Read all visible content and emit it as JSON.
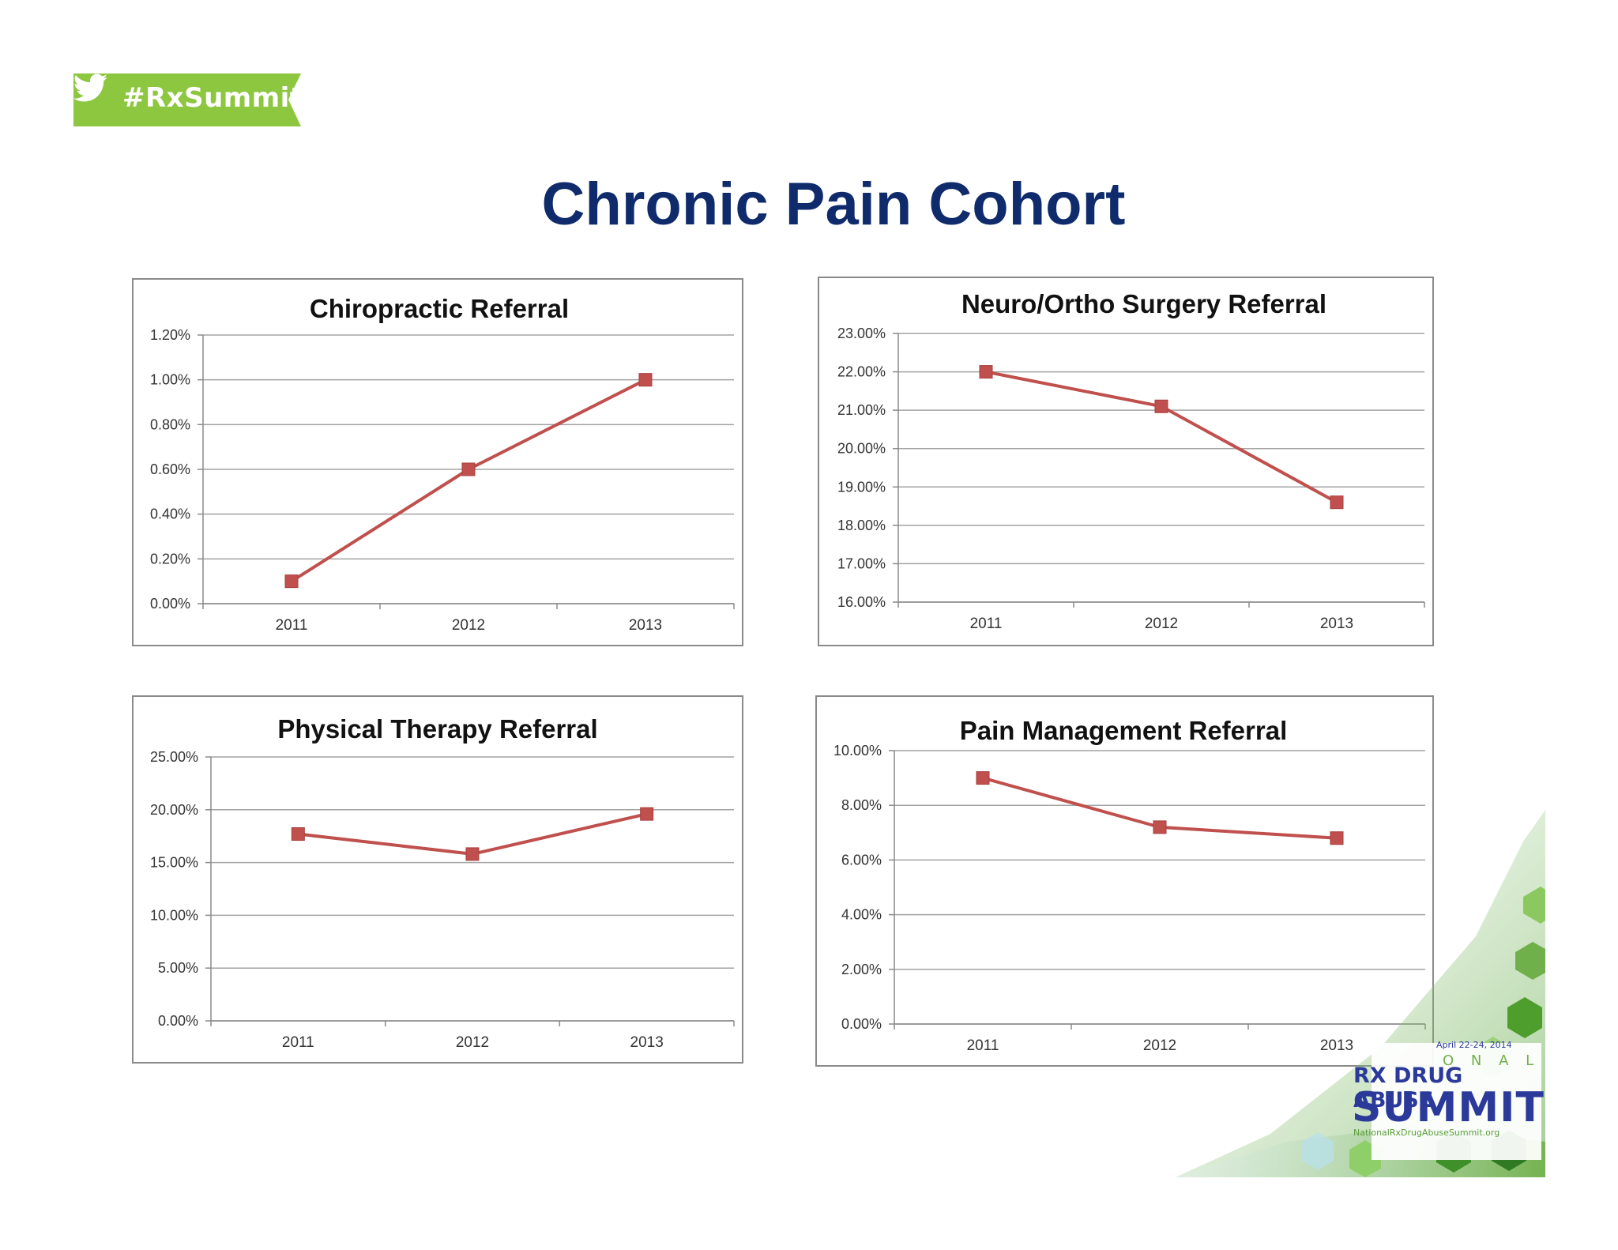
{
  "badge": {
    "text": "#RxSummit",
    "color": "#8dc63f"
  },
  "title": "Chronic Pain Cohort",
  "logo": {
    "dates": "April 22-24, 2014",
    "national_fragment": "O N A L",
    "line1": "RX DRUG ABUSE",
    "line2": "SUMMIT",
    "url": "NationalRxDrugAbuseSummit.org"
  },
  "colors": {
    "line": "#c0504d",
    "marker": "#c0504d",
    "title_text": "#0f2b6b",
    "grid": "#9a9a9a"
  },
  "chart_data": [
    {
      "type": "line",
      "title": "Chiropractic Referral",
      "categories": [
        "2011",
        "2012",
        "2013"
      ],
      "values": [
        0.1,
        0.6,
        1.0
      ],
      "ylim": [
        0,
        1.2
      ],
      "yticks": [
        "0.00%",
        "0.20%",
        "0.40%",
        "0.60%",
        "0.80%",
        "1.00%",
        "1.20%"
      ],
      "xlabel": "",
      "ylabel": "",
      "grid": true
    },
    {
      "type": "line",
      "title": "Neuro/Ortho Surgery Referral",
      "categories": [
        "2011",
        "2012",
        "2013"
      ],
      "values": [
        22.0,
        21.1,
        18.6
      ],
      "ylim": [
        16,
        23
      ],
      "yticks": [
        "16.00%",
        "17.00%",
        "18.00%",
        "19.00%",
        "20.00%",
        "21.00%",
        "22.00%",
        "23.00%"
      ],
      "xlabel": "",
      "ylabel": "",
      "grid": true
    },
    {
      "type": "line",
      "title": "Physical Therapy Referral",
      "categories": [
        "2011",
        "2012",
        "2013"
      ],
      "values": [
        17.7,
        15.8,
        19.6
      ],
      "ylim": [
        0,
        25
      ],
      "yticks": [
        "0.00%",
        "5.00%",
        "10.00%",
        "15.00%",
        "20.00%",
        "25.00%"
      ],
      "xlabel": "",
      "ylabel": "",
      "grid": true
    },
    {
      "type": "line",
      "title": "Pain Management Referral",
      "categories": [
        "2011",
        "2012",
        "2013"
      ],
      "values": [
        9.0,
        7.2,
        6.8
      ],
      "ylim": [
        0,
        10
      ],
      "yticks": [
        "0.00%",
        "2.00%",
        "4.00%",
        "6.00%",
        "8.00%",
        "10.00%"
      ],
      "xlabel": "",
      "ylabel": "",
      "grid": true
    }
  ]
}
